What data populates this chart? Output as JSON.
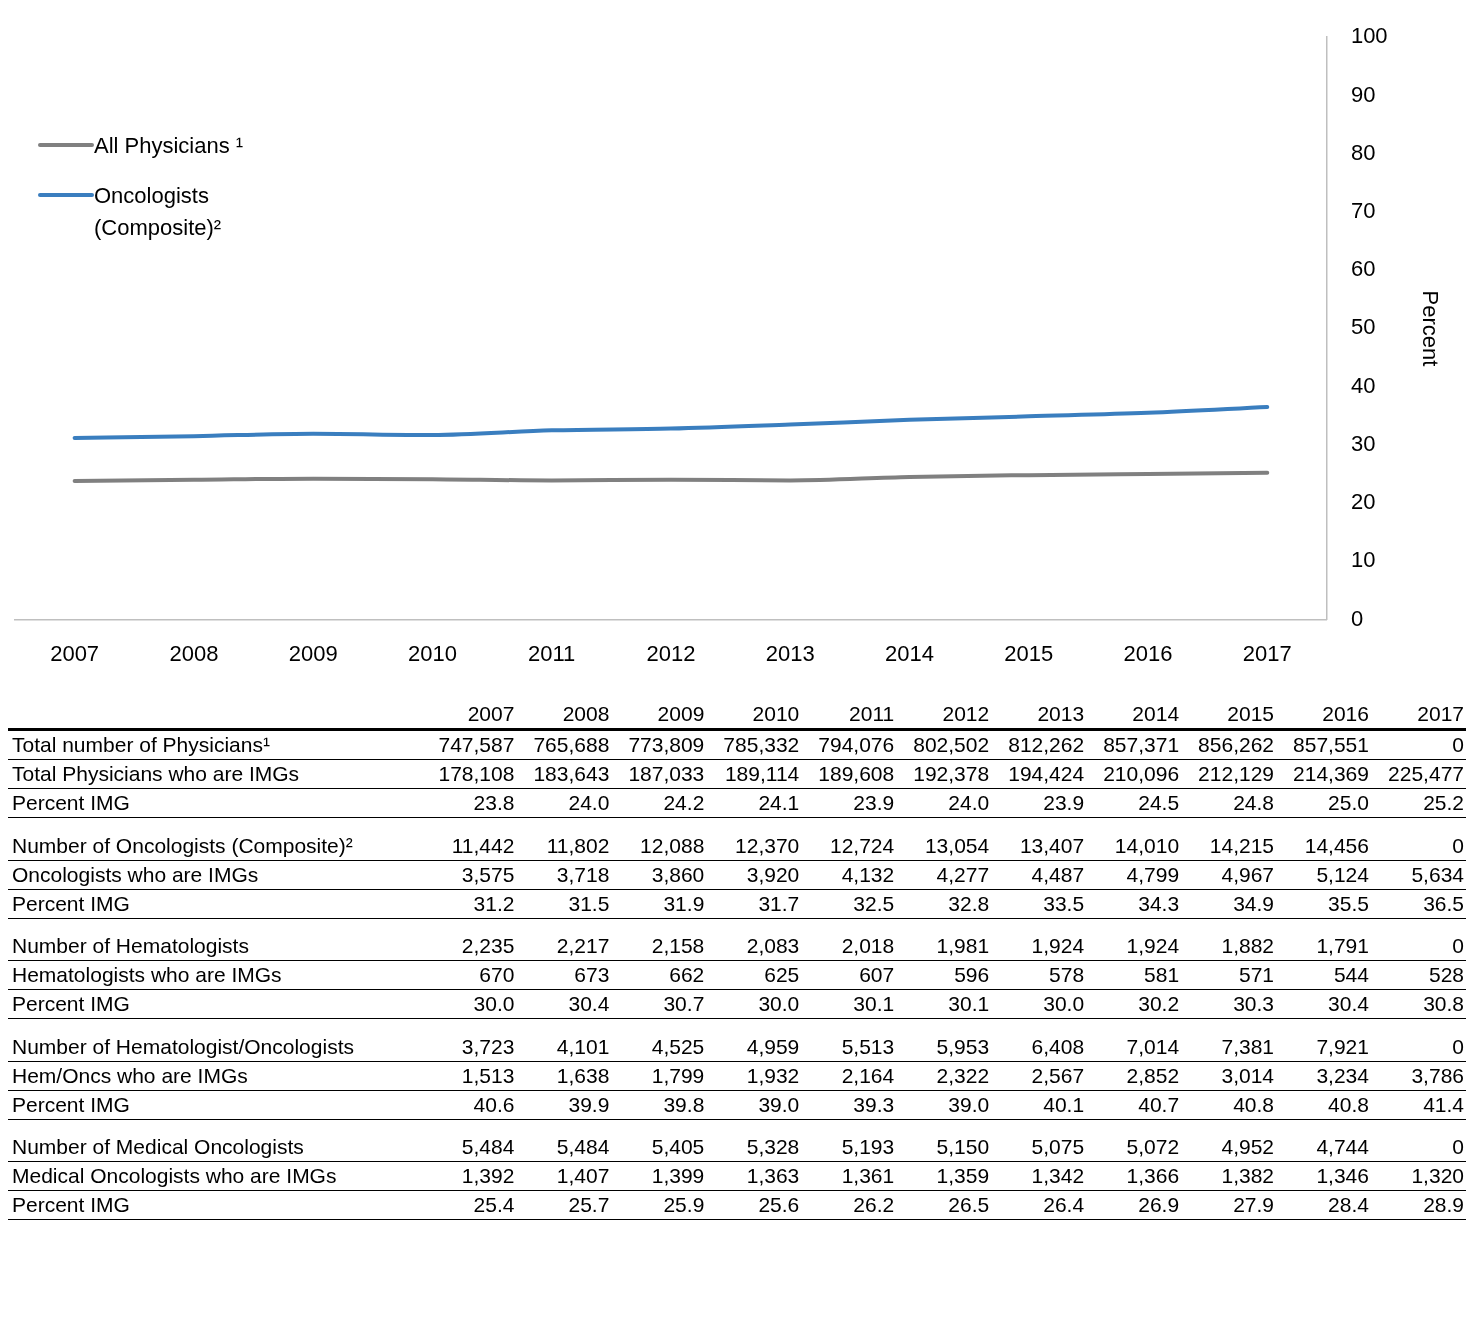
{
  "chart_data": [
    {
      "type": "line",
      "categories": [
        "2007",
        "2008",
        "2009",
        "2010",
        "2011",
        "2012",
        "2013",
        "2014",
        "2015",
        "2016",
        "2017"
      ],
      "series": [
        {
          "name": "All Physicians ¹",
          "color": "#808080",
          "values": [
            23.8,
            24.0,
            24.2,
            24.1,
            23.9,
            24.0,
            23.9,
            24.5,
            24.8,
            25.0,
            25.2
          ]
        },
        {
          "name": "Oncologists (Composite)²",
          "color": "#3a7ebf",
          "values": [
            31.2,
            31.5,
            31.9,
            31.7,
            32.5,
            32.8,
            33.5,
            34.3,
            34.9,
            35.5,
            36.5
          ]
        }
      ],
      "ylim": [
        0,
        100
      ],
      "yticks": [
        0,
        10,
        20,
        30,
        40,
        50,
        60,
        70,
        80,
        90,
        100
      ],
      "ylabel": "Percent",
      "grid": false,
      "legend": "top left",
      "marker": "none",
      "line_style": "solid"
    },
    {
      "type": "heatmap",
      "categories": [
        "2007",
        "2008",
        "2009",
        "2010",
        "2011",
        "2012",
        "2013",
        "2014",
        "2015",
        "2016",
        "2017"
      ],
      "y_categories": [
        "Total number of Physicians¹",
        "Total Physicians who are IMGs",
        "Percent IMG",
        "Number of Oncologists (Composite)²",
        "Oncologists who are IMGs",
        "Percent IMG",
        "Number of Hematologists",
        "Hematologists who are IMGs",
        "Percent IMG",
        "Number of Hematologist/Oncologists",
        "Hem/Oncs who are IMGs",
        "Percent IMG",
        "Number of Medical Oncologists",
        "Medical Oncologists who are IMGs",
        "Percent IMG"
      ],
      "cells": [
        [
          747587,
          765688,
          773809,
          785332,
          794076,
          802502,
          812262,
          857371,
          856262,
          857551,
          0
        ],
        [
          178108,
          183643,
          187033,
          189114,
          189608,
          192378,
          194424,
          210096,
          212129,
          214369,
          225477
        ],
        [
          23.8,
          24.0,
          24.2,
          24.1,
          23.9,
          24.0,
          23.9,
          24.5,
          24.8,
          25.0,
          25.2
        ],
        [
          11442,
          11802,
          12088,
          12370,
          12724,
          13054,
          13407,
          14010,
          14215,
          14456,
          0
        ],
        [
          3575,
          3718,
          3860,
          3920,
          4132,
          4277,
          4487,
          4799,
          4967,
          5124,
          5634
        ],
        [
          31.2,
          31.5,
          31.9,
          31.7,
          32.5,
          32.8,
          33.5,
          34.3,
          34.9,
          35.5,
          36.5
        ],
        [
          2235,
          2217,
          2158,
          2083,
          2018,
          1981,
          1924,
          1924,
          1882,
          1791,
          0
        ],
        [
          670,
          673,
          662,
          625,
          607,
          596,
          578,
          581,
          571,
          544,
          528
        ],
        [
          30.0,
          30.4,
          30.7,
          30.0,
          30.1,
          30.1,
          30.0,
          30.2,
          30.3,
          30.4,
          30.8
        ],
        [
          3723,
          4101,
          4525,
          4959,
          5513,
          5953,
          6408,
          7014,
          7381,
          7921,
          0
        ],
        [
          1513,
          1638,
          1799,
          1932,
          2164,
          2322,
          2567,
          2852,
          3014,
          3234,
          3786
        ],
        [
          40.6,
          39.9,
          39.8,
          39.0,
          39.3,
          39.0,
          40.1,
          40.7,
          40.8,
          40.8,
          41.4
        ],
        [
          5484,
          5484,
          5405,
          5328,
          5193,
          5150,
          5075,
          5072,
          4952,
          4744,
          0
        ],
        [
          1392,
          1407,
          1399,
          1363,
          1361,
          1359,
          1342,
          1366,
          1382,
          1346,
          1320
        ],
        [
          25.4,
          25.7,
          25.9,
          25.6,
          26.2,
          26.5,
          26.4,
          26.9,
          27.9,
          28.4,
          28.9
        ]
      ],
      "cell_labels": [
        [
          "747,587",
          "765,688",
          "773,809",
          "785,332",
          "794,076",
          "802,502",
          "812,262",
          "857,371",
          "856,262",
          "857,551",
          "0"
        ],
        [
          "178,108",
          "183,643",
          "187,033",
          "189,114",
          "189,608",
          "192,378",
          "194,424",
          "210,096",
          "212,129",
          "214,369",
          "225,477"
        ],
        [
          "23.8",
          "24.0",
          "24.2",
          "24.1",
          "23.9",
          "24.0",
          "23.9",
          "24.5",
          "24.8",
          "25.0",
          "25.2"
        ],
        [
          "11,442",
          "11,802",
          "12,088",
          "12,370",
          "12,724",
          "13,054",
          "13,407",
          "14,010",
          "14,215",
          "14,456",
          "0"
        ],
        [
          "3,575",
          "3,718",
          "3,860",
          "3,920",
          "4,132",
          "4,277",
          "4,487",
          "4,799",
          "4,967",
          "5,124",
          "5,634"
        ],
        [
          "31.2",
          "31.5",
          "31.9",
          "31.7",
          "32.5",
          "32.8",
          "33.5",
          "34.3",
          "34.9",
          "35.5",
          "36.5"
        ],
        [
          "2,235",
          "2,217",
          "2,158",
          "2,083",
          "2,018",
          "1,981",
          "1,924",
          "1,924",
          "1,882",
          "1,791",
          "0"
        ],
        [
          "670",
          "673",
          "662",
          "625",
          "607",
          "596",
          "578",
          "581",
          "571",
          "544",
          "528"
        ],
        [
          "30.0",
          "30.4",
          "30.7",
          "30.0",
          "30.1",
          "30.1",
          "30.0",
          "30.2",
          "30.3",
          "30.4",
          "30.8"
        ],
        [
          "3,723",
          "4,101",
          "4,525",
          "4,959",
          "5,513",
          "5,953",
          "6,408",
          "7,014",
          "7,381",
          "7,921",
          "0"
        ],
        [
          "1,513",
          "1,638",
          "1,799",
          "1,932",
          "2,164",
          "2,322",
          "2,567",
          "2,852",
          "3,014",
          "3,234",
          "3,786"
        ],
        [
          "40.6",
          "39.9",
          "39.8",
          "39.0",
          "39.3",
          "39.0",
          "40.1",
          "40.7",
          "40.8",
          "40.8",
          "41.4"
        ],
        [
          "5,484",
          "5,484",
          "5,405",
          "5,328",
          "5,193",
          "5,150",
          "5,075",
          "5,072",
          "4,952",
          "4,744",
          "0"
        ],
        [
          "1,392",
          "1,407",
          "1,399",
          "1,363",
          "1,361",
          "1,359",
          "1,342",
          "1,366",
          "1,382",
          "1,346",
          "1,320"
        ],
        [
          "25.4",
          "25.7",
          "25.9",
          "25.6",
          "26.2",
          "26.5",
          "26.4",
          "26.9",
          "27.9",
          "28.4",
          "28.9"
        ]
      ]
    }
  ]
}
